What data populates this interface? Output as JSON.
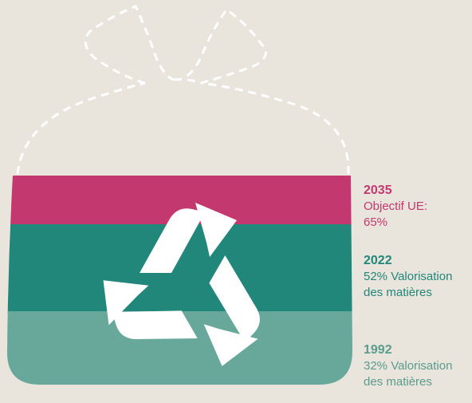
{
  "levels": [
    {
      "year": "2035",
      "lines": [
        "Objectif UE:",
        "65%"
      ]
    },
    {
      "year": "2022",
      "lines": [
        "52% Valorisation",
        "des matières"
      ]
    },
    {
      "year": "1992",
      "lines": [
        "32% Valorisation",
        "des matières"
      ]
    }
  ]
}
